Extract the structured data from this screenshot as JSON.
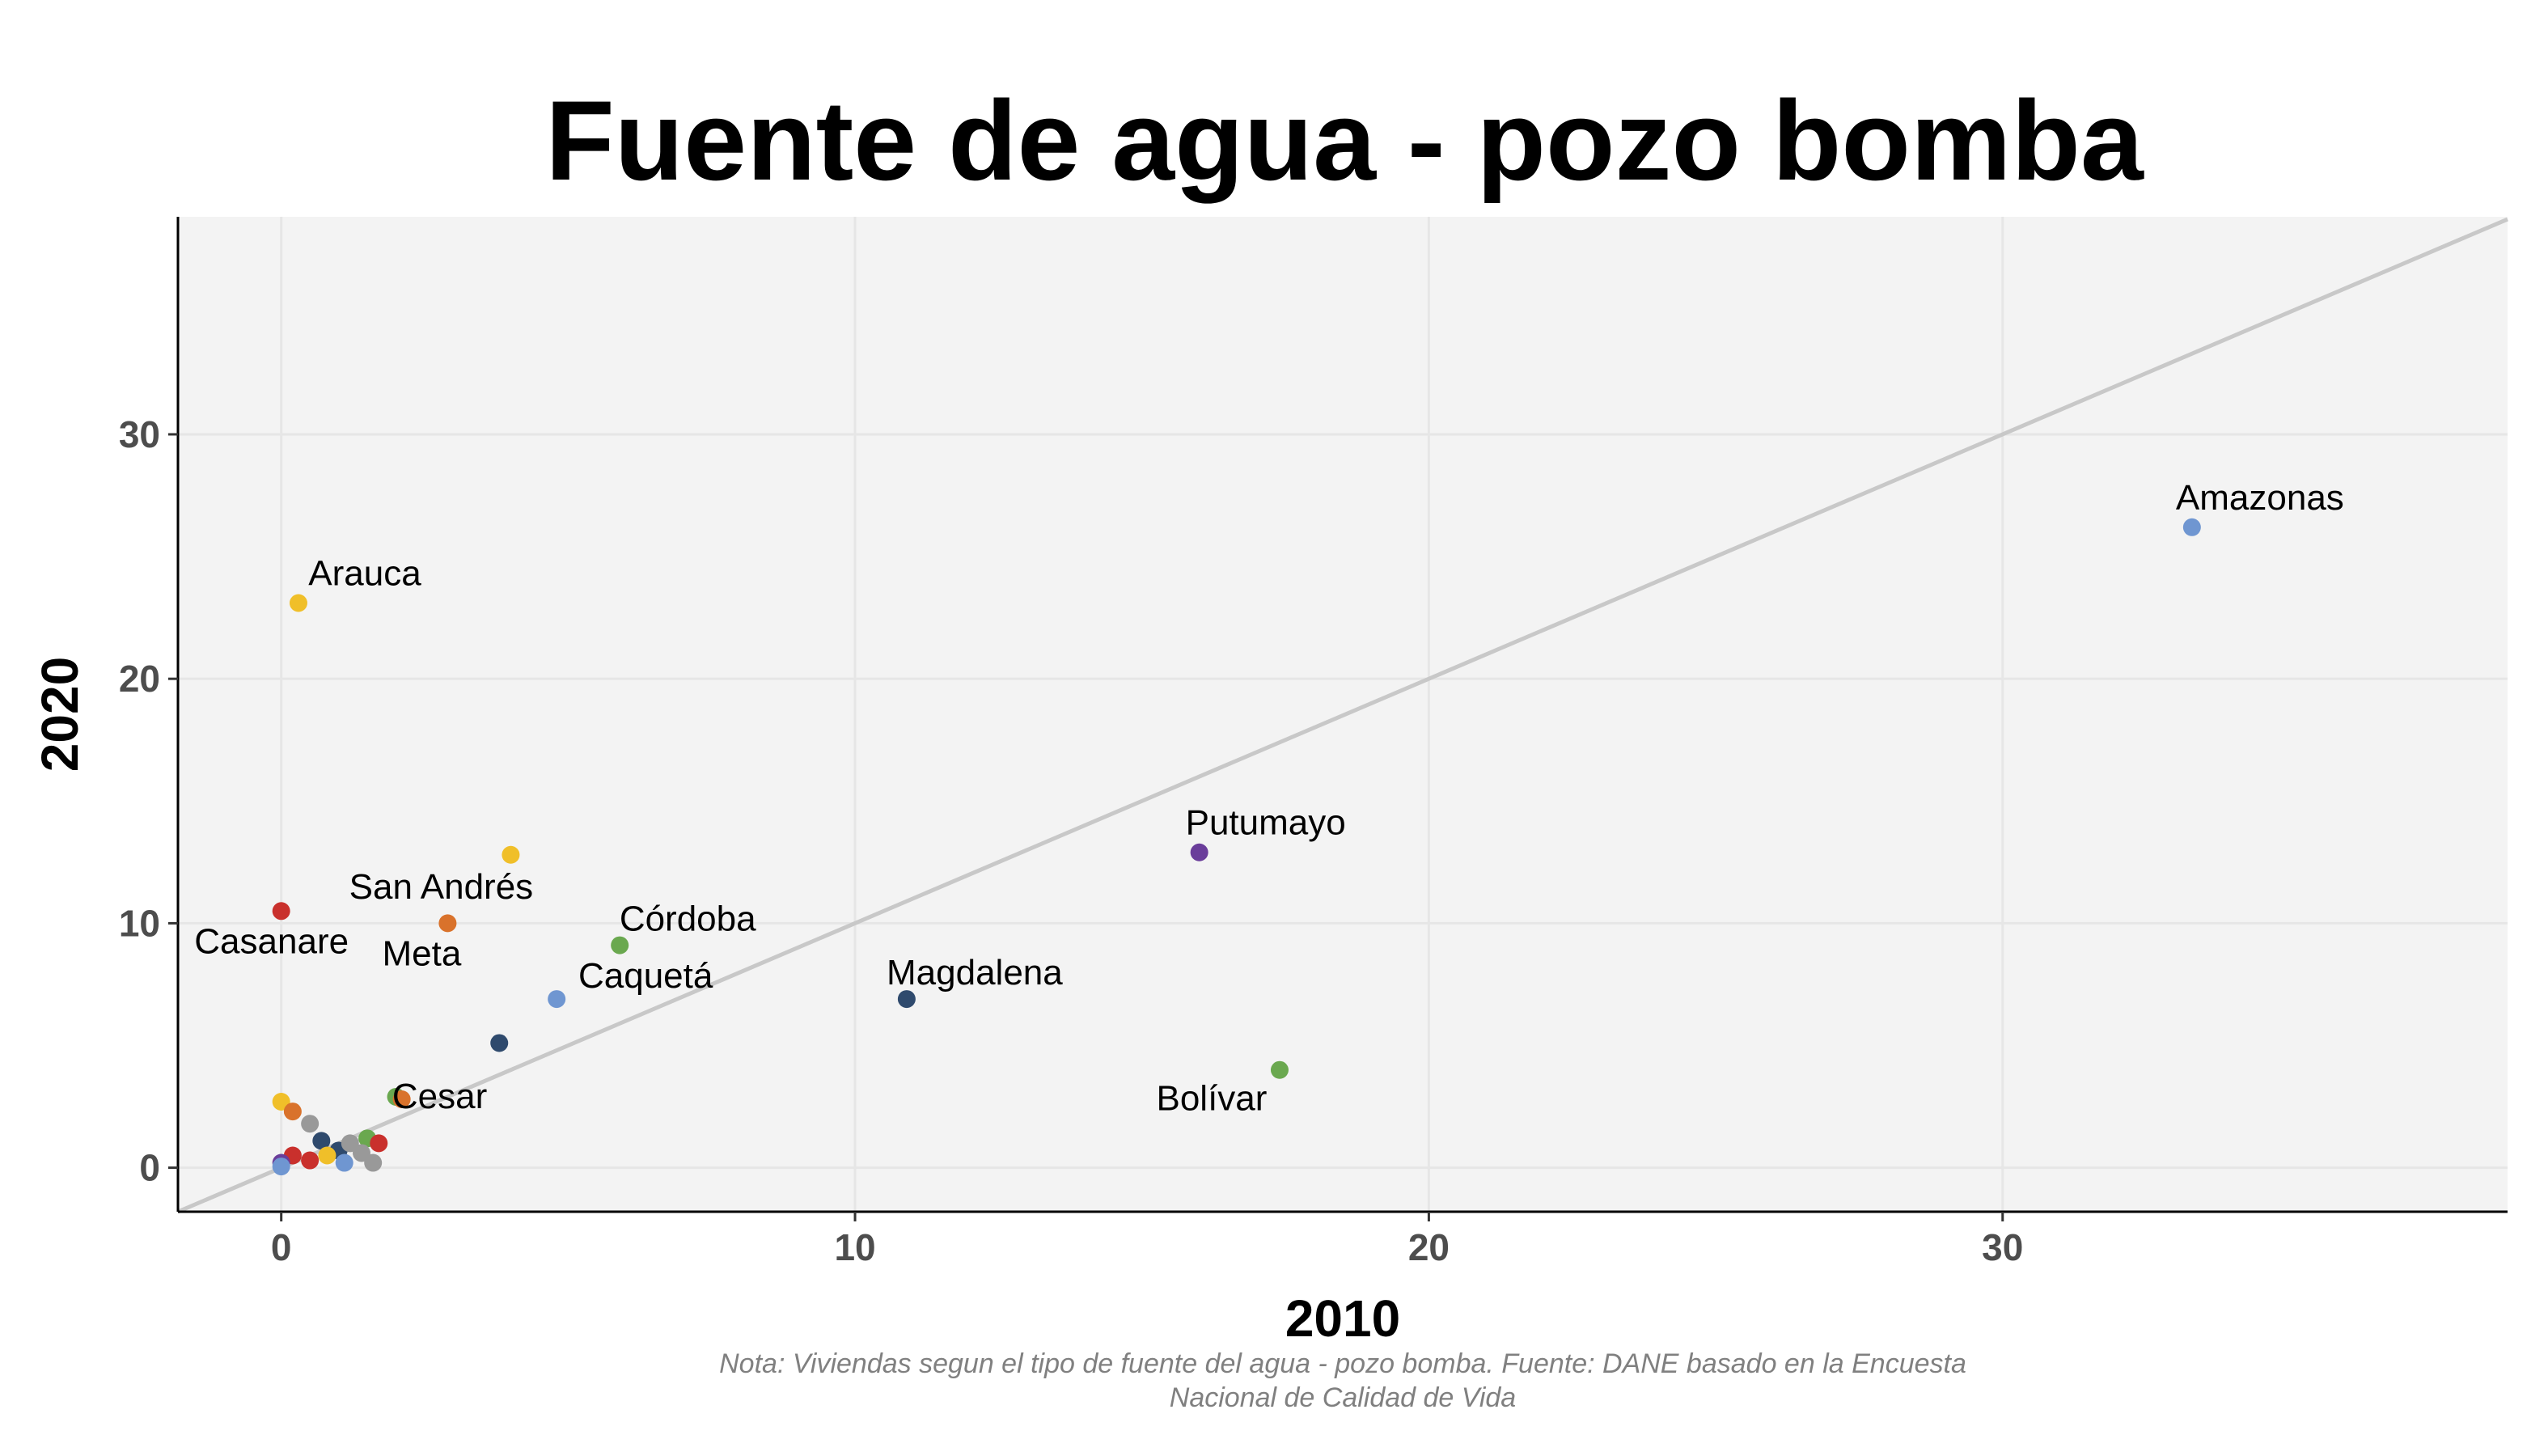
{
  "chart_data": {
    "type": "scatter",
    "title": "Fuente de agua - pozo bomba",
    "xlabel": "2010",
    "ylabel": "2020",
    "xlim": [
      -1.8,
      38.8
    ],
    "ylim": [
      -1.8,
      38.9
    ],
    "x_ticks": [
      0,
      10,
      20,
      30
    ],
    "y_ticks": [
      0,
      10,
      20,
      30
    ],
    "grid": true,
    "reference_line": "y = x",
    "note": "Nota: Viviendas segun el tipo de fuente del agua - pozo bomba. Fuente: DANE basado en la Encuesta Nacional de Calidad de Vida",
    "note_lines": [
      "Nota: Viviendas segun el tipo de fuente del agua - pozo bomba. Fuente: DANE basado en la Encuesta",
      "Nacional de Calidad de Vida"
    ],
    "points": [
      {
        "label": "Amazonas",
        "x": 33.3,
        "y": 26.2,
        "color": "#6f96d1"
      },
      {
        "label": "Arauca",
        "x": 0.3,
        "y": 23.1,
        "color": "#f0bf29"
      },
      {
        "label": "Putumayo",
        "x": 16.0,
        "y": 12.9,
        "color": "#6a3d9a"
      },
      {
        "label": "San Andrés",
        "x": 4.0,
        "y": 12.8,
        "color": "#f0bf29"
      },
      {
        "label": "Casanare",
        "x": 0.0,
        "y": 10.5,
        "color": "#c9302c"
      },
      {
        "label": "Meta",
        "x": 2.9,
        "y": 10.0,
        "color": "#d9722b"
      },
      {
        "label": "Córdoba",
        "x": 5.9,
        "y": 9.1,
        "color": "#6aa84f"
      },
      {
        "label": "Caquetá",
        "x": 4.8,
        "y": 6.9,
        "color": "#6f96d1"
      },
      {
        "label": "Magdalena",
        "x": 10.9,
        "y": 6.9,
        "color": "#2f4a6d"
      },
      {
        "label": "",
        "x": 3.8,
        "y": 5.1,
        "color": "#2f4a6d"
      },
      {
        "label": "Bolívar",
        "x": 17.4,
        "y": 4.0,
        "color": "#6aa84f"
      },
      {
        "label": "Cesar",
        "x": 2.0,
        "y": 2.9,
        "color": "#6aa84f"
      },
      {
        "label": "",
        "x": 2.1,
        "y": 2.8,
        "color": "#d9722b"
      },
      {
        "label": "",
        "x": 0.0,
        "y": 2.7,
        "color": "#f0bf29"
      },
      {
        "label": "",
        "x": 0.2,
        "y": 2.3,
        "color": "#d9722b"
      },
      {
        "label": "",
        "x": 0.5,
        "y": 1.8,
        "color": "#999999"
      },
      {
        "label": "",
        "x": 0.7,
        "y": 1.1,
        "color": "#2f4a6d"
      },
      {
        "label": "",
        "x": 1.0,
        "y": 0.7,
        "color": "#2f4a6d"
      },
      {
        "label": "",
        "x": 1.2,
        "y": 1.0,
        "color": "#999999"
      },
      {
        "label": "",
        "x": 1.5,
        "y": 1.2,
        "color": "#6aa84f"
      },
      {
        "label": "",
        "x": 1.7,
        "y": 1.0,
        "color": "#c9302c"
      },
      {
        "label": "",
        "x": 1.4,
        "y": 0.6,
        "color": "#999999"
      },
      {
        "label": "",
        "x": 1.6,
        "y": 0.2,
        "color": "#999999"
      },
      {
        "label": "",
        "x": 1.1,
        "y": 0.2,
        "color": "#6f96d1"
      },
      {
        "label": "",
        "x": 0.8,
        "y": 0.5,
        "color": "#f0bf29"
      },
      {
        "label": "",
        "x": 0.5,
        "y": 0.3,
        "color": "#c9302c"
      },
      {
        "label": "",
        "x": 0.2,
        "y": 0.5,
        "color": "#c9302c"
      },
      {
        "label": "",
        "x": 0.0,
        "y": 0.2,
        "color": "#6a3d9a"
      },
      {
        "label": "",
        "x": 0.0,
        "y": 0.05,
        "color": "#6f96d1"
      }
    ],
    "colors": {
      "panel_background": "#f3f3f3",
      "grid": "#e6e6e6",
      "reference_line": "#c8c8c8"
    }
  }
}
